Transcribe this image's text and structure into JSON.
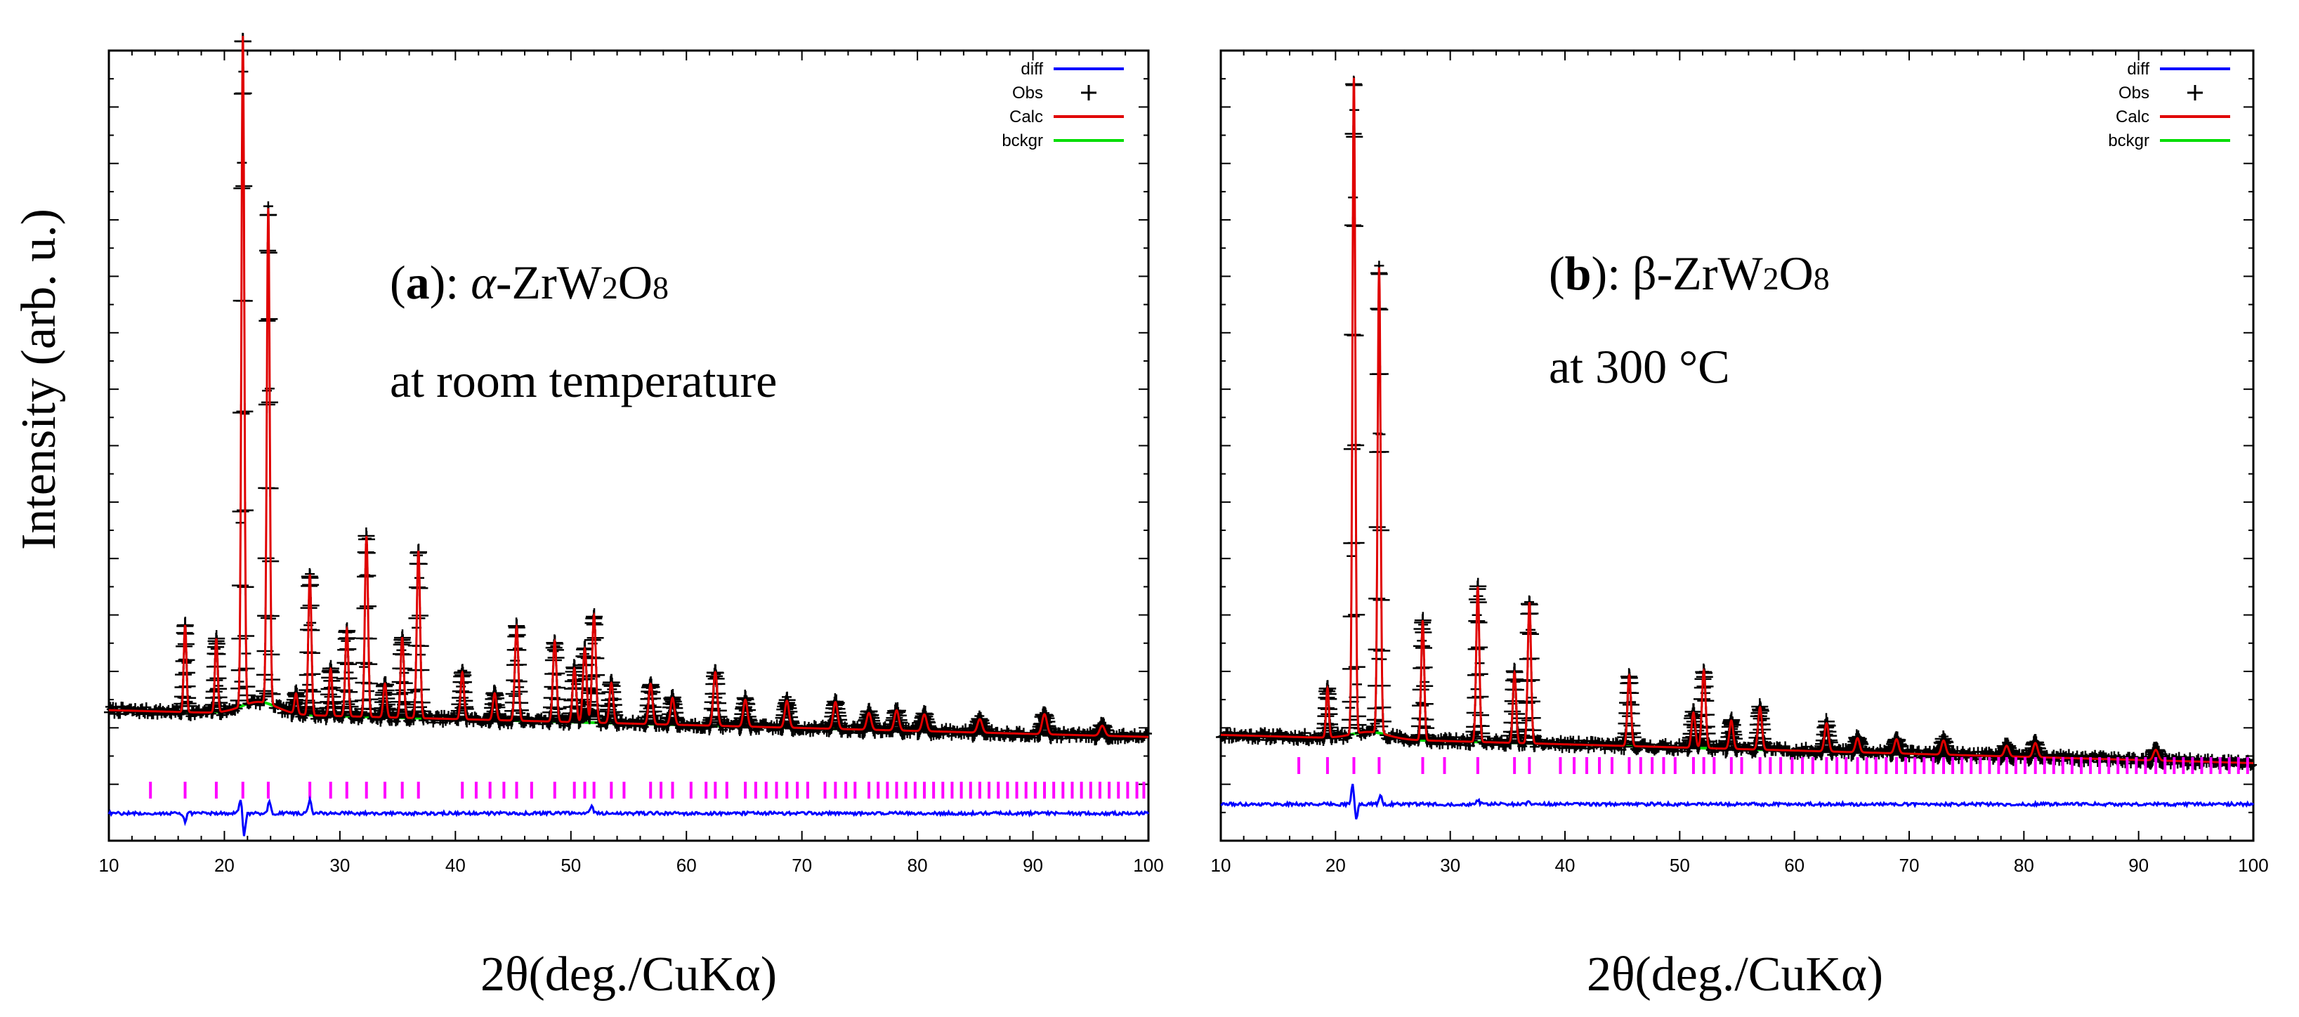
{
  "figure": {
    "ylabel": "Intensity (arb. u.)"
  },
  "chart_data": [
    {
      "type": "line",
      "panel": "a",
      "panel_label": "a",
      "title_line1_prefix": "(",
      "title_line1_suffix": "): ",
      "phase_symbol": "α",
      "formula_pre": "-ZrW",
      "sub1": "2",
      "formula_mid": "O",
      "sub2": "8",
      "title_line2": "at room temperature",
      "xlabel": "2θ(deg./CuKα)",
      "ylabel": "Intensity (arb. u.)",
      "xlim": [
        10,
        100
      ],
      "ylim": [
        -0.16,
        1.02
      ],
      "xticks": [
        "10",
        "20",
        "30",
        "40",
        "50",
        "60",
        "70",
        "80",
        "90",
        "100"
      ],
      "legend": [
        {
          "label": "diff",
          "style": "line",
          "color": "#0000ff"
        },
        {
          "label": "Obs",
          "style": "cross",
          "color": "#000000"
        },
        {
          "label": "Calc",
          "style": "line",
          "color": "#e00000"
        },
        {
          "label": "bckgr",
          "style": "line",
          "color": "#00dd00"
        }
      ],
      "background": {
        "start": 0.035,
        "end": -0.005,
        "bump_x": 23,
        "bump_height": 0.018
      },
      "peaks": [
        [
          16.6,
          0.13
        ],
        [
          19.3,
          0.11
        ],
        [
          21.6,
          1.0
        ],
        [
          23.8,
          0.74
        ],
        [
          26.2,
          0.03
        ],
        [
          27.4,
          0.21
        ],
        [
          29.2,
          0.07
        ],
        [
          30.6,
          0.13
        ],
        [
          32.3,
          0.27
        ],
        [
          33.9,
          0.05
        ],
        [
          35.4,
          0.12
        ],
        [
          36.8,
          0.25
        ],
        [
          40.6,
          0.07
        ],
        [
          43.4,
          0.04
        ],
        [
          45.3,
          0.14
        ],
        [
          48.6,
          0.12
        ],
        [
          50.3,
          0.08
        ],
        [
          51.2,
          0.11
        ],
        [
          52.0,
          0.16
        ],
        [
          53.5,
          0.06
        ],
        [
          56.9,
          0.06
        ],
        [
          58.8,
          0.04
        ],
        [
          62.5,
          0.08
        ],
        [
          65.1,
          0.04
        ],
        [
          68.7,
          0.04
        ],
        [
          72.9,
          0.04
        ],
        [
          75.8,
          0.025
        ],
        [
          78.2,
          0.03
        ],
        [
          80.6,
          0.025
        ],
        [
          85.4,
          0.02
        ],
        [
          91.0,
          0.03
        ],
        [
          96.0,
          0.015
        ]
      ],
      "reflection_ticks": [
        13.6,
        16.6,
        19.3,
        21.6,
        23.8,
        27.4,
        29.2,
        30.6,
        32.3,
        33.9,
        35.4,
        36.8,
        40.6,
        41.8,
        43.0,
        44.2,
        45.3,
        46.6,
        48.6,
        50.3,
        51.2,
        52.0,
        53.5,
        54.6,
        56.9,
        57.8,
        58.8,
        60.4,
        61.7,
        62.5,
        63.5,
        65.1,
        66.0,
        66.9,
        67.8,
        68.7,
        69.6,
        70.5,
        72.0,
        72.9,
        73.8,
        74.6,
        75.8,
        76.6,
        77.4,
        78.2,
        79.0,
        79.8,
        80.6,
        81.4,
        82.2,
        83.0,
        83.8,
        84.6,
        85.4,
        86.2,
        87.0,
        87.8,
        88.6,
        89.4,
        90.2,
        91.0,
        91.8,
        92.6,
        93.4,
        94.2,
        95.0,
        95.8,
        96.6,
        97.4,
        98.2,
        99.0,
        99.6
      ],
      "diff_spikes": [
        [
          16.6,
          -0.01
        ],
        [
          21.4,
          0.02
        ],
        [
          21.7,
          -0.03
        ],
        [
          23.9,
          0.015
        ],
        [
          27.4,
          0.018
        ],
        [
          51.8,
          0.01
        ]
      ]
    },
    {
      "type": "line",
      "panel": "b",
      "panel_label": "b",
      "title_line1_prefix": "(",
      "title_line1_suffix": "): ",
      "phase_symbol": "β",
      "formula_pre": "-ZrW",
      "sub1": "2",
      "formula_mid": "O",
      "sub2": "8",
      "title_line2": "at 300 °C",
      "xlabel": "2θ(deg./CuKα)",
      "ylabel": "Intensity (arb. u.)",
      "xlim": [
        10,
        100
      ],
      "ylim": [
        -0.1,
        1.02
      ],
      "xticks": [
        "10",
        "20",
        "30",
        "40",
        "50",
        "60",
        "70",
        "80",
        "90",
        "100"
      ],
      "legend": [
        {
          "label": "diff",
          "style": "line",
          "color": "#0000ff"
        },
        {
          "label": "Obs",
          "style": "cross",
          "color": "#000000"
        },
        {
          "label": "Calc",
          "style": "line",
          "color": "#e00000"
        },
        {
          "label": "bckgr",
          "style": "line",
          "color": "#00dd00"
        }
      ],
      "background": {
        "start": 0.05,
        "end": 0.01,
        "bump_x": 23,
        "bump_height": 0.01
      },
      "peaks": [
        [
          19.3,
          0.07
        ],
        [
          21.6,
          0.93
        ],
        [
          23.8,
          0.66
        ],
        [
          27.6,
          0.17
        ],
        [
          32.4,
          0.22
        ],
        [
          35.6,
          0.1
        ],
        [
          36.9,
          0.2
        ],
        [
          45.6,
          0.1
        ],
        [
          51.2,
          0.05
        ],
        [
          52.1,
          0.11
        ],
        [
          54.5,
          0.04
        ],
        [
          57.0,
          0.06
        ],
        [
          62.8,
          0.04
        ],
        [
          65.5,
          0.02
        ],
        [
          68.9,
          0.02
        ],
        [
          73.0,
          0.02
        ],
        [
          78.5,
          0.015
        ],
        [
          81.0,
          0.02
        ],
        [
          91.5,
          0.015
        ]
      ],
      "reflection_ticks": [
        16.8,
        19.3,
        21.6,
        23.8,
        27.6,
        29.5,
        32.4,
        35.6,
        36.9,
        39.6,
        40.8,
        41.9,
        43.0,
        44.1,
        45.6,
        46.6,
        47.6,
        48.6,
        49.6,
        51.2,
        52.1,
        53.0,
        54.5,
        55.4,
        57.0,
        57.9,
        58.8,
        59.8,
        60.7,
        61.6,
        62.8,
        63.7,
        64.5,
        65.5,
        66.3,
        67.1,
        68.0,
        68.9,
        69.7,
        70.5,
        71.3,
        72.1,
        73.0,
        73.8,
        74.6,
        75.4,
        76.2,
        77.0,
        77.8,
        78.5,
        79.3,
        80.1,
        81.0,
        81.8,
        82.6,
        83.4,
        84.2,
        85.0,
        85.8,
        86.6,
        87.4,
        88.2,
        89.0,
        89.8,
        90.6,
        91.5,
        92.3,
        93.1,
        93.9,
        94.7,
        95.5,
        96.3,
        97.1,
        97.9,
        98.7,
        99.5
      ],
      "diff_spikes": [
        [
          21.5,
          0.025
        ],
        [
          21.8,
          -0.02
        ],
        [
          23.9,
          0.012
        ],
        [
          32.4,
          0.006
        ],
        [
          36.9,
          0.004
        ]
      ]
    }
  ]
}
